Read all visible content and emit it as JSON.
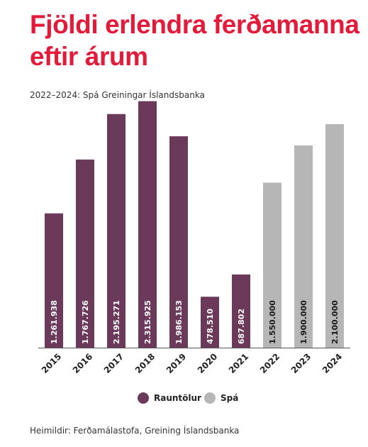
{
  "colors": {
    "title": "#e31b3b",
    "actual": "#6b3a5b",
    "forecast": "#b5b6b5",
    "axis": "#555555"
  },
  "title": "Fjöldi erlendra ferðamanna eftir árum",
  "subtitle": "2022–2024: Spá Greiningar Íslandsbanka",
  "legend": {
    "actual": "Rauntölur",
    "forecast": "Spá"
  },
  "source": "Heimildir: Ferðamálastofa, Greining Íslandsbanka",
  "chart_data": {
    "type": "bar",
    "categories": [
      "2015",
      "2016",
      "2017",
      "2018",
      "2019",
      "2020",
      "2021",
      "2022",
      "2023",
      "2024"
    ],
    "series": [
      {
        "name": "Rauntölur",
        "values": [
          1261938,
          1767726,
          2195271,
          2315925,
          1986153,
          478510,
          687802,
          null,
          null,
          null
        ],
        "labels": [
          "1.261.938",
          "1.767.726",
          "2.195.271",
          "2.315.925",
          "1.986.153",
          "478.510",
          "687.802",
          null,
          null,
          null
        ]
      },
      {
        "name": "Spá",
        "values": [
          null,
          null,
          null,
          null,
          null,
          null,
          null,
          1550000,
          1900000,
          2100000
        ],
        "labels": [
          null,
          null,
          null,
          null,
          null,
          null,
          null,
          "1.550.000",
          "1.900.000",
          "2.100.000"
        ]
      }
    ],
    "ylim": [
      0,
      2500000
    ],
    "grid": false,
    "legend_position": "bottom-center"
  }
}
